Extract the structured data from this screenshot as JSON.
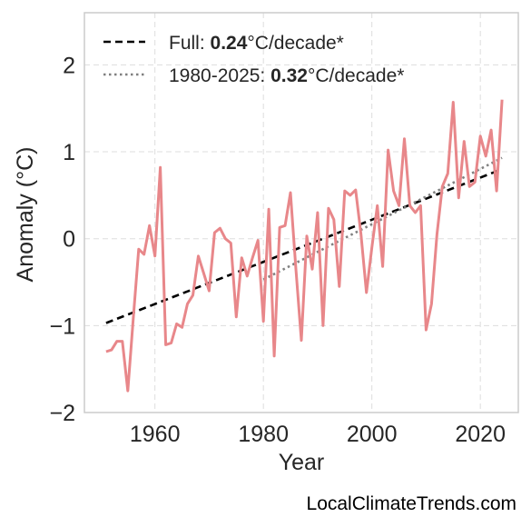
{
  "chart_data": {
    "type": "line",
    "xlabel": "Year",
    "ylabel": "Anomaly (°C)",
    "xlim": [
      1947,
      2027
    ],
    "ylim": [
      -2,
      2.6
    ],
    "x_ticks": [
      1960,
      1980,
      2000,
      2020
    ],
    "x_tick_labels": [
      "1960",
      "1980",
      "2000",
      "2020"
    ],
    "y_ticks": [
      -2,
      -1,
      0,
      1,
      2
    ],
    "y_tick_labels": [
      "−2",
      "−1",
      "0",
      "1",
      "2"
    ],
    "grid": true,
    "legend_position": "top-left",
    "colors": {
      "series": "#e8878a",
      "trend_full": "#000000",
      "trend_recent": "#808080",
      "grid": "#dddddd",
      "frame": "#cccccc"
    },
    "series": [
      {
        "x": [
          1951,
          1952,
          1953,
          1954,
          1955,
          1956,
          1957,
          1958,
          1959,
          1960,
          1961,
          1962,
          1963,
          1964,
          1965,
          1966,
          1967,
          1968,
          1969,
          1970,
          1971,
          1972,
          1973,
          1974,
          1975,
          1976,
          1977,
          1978,
          1979,
          1980,
          1981,
          1982,
          1983,
          1984,
          1985,
          1986,
          1987,
          1988,
          1989,
          1990,
          1991,
          1992,
          1993,
          1994,
          1995,
          1996,
          1997,
          1998,
          1999,
          2000,
          2001,
          2002,
          2003,
          2004,
          2005,
          2006,
          2007,
          2008,
          2009,
          2010,
          2011,
          2012,
          2013,
          2014,
          2015,
          2016,
          2017,
          2018,
          2019,
          2020,
          2021,
          2022,
          2023,
          2024
        ],
        "values": [
          -1.3,
          -1.28,
          -1.18,
          -1.18,
          -1.75,
          -0.92,
          -0.12,
          -0.18,
          0.15,
          -0.2,
          0.82,
          -1.22,
          -1.2,
          -0.98,
          -1.02,
          -0.75,
          -0.65,
          -0.2,
          -0.4,
          -0.6,
          0.07,
          0.12,
          0.0,
          -0.05,
          -0.9,
          -0.22,
          -0.43,
          -0.22,
          -0.02,
          -0.95,
          0.34,
          -1.35,
          0.13,
          0.15,
          0.53,
          -0.35,
          -1.17,
          0.03,
          -0.35,
          0.3,
          -1.0,
          0.35,
          0.22,
          -0.55,
          0.55,
          0.5,
          0.56,
          0.05,
          -0.62,
          -0.1,
          0.38,
          -0.32,
          1.02,
          0.55,
          0.38,
          1.15,
          0.38,
          0.3,
          0.38,
          -1.05,
          -0.75,
          0.05,
          0.6,
          0.75,
          1.57,
          0.47,
          1.12,
          0.6,
          0.65,
          1.18,
          0.95,
          1.25,
          0.55,
          1.6
        ]
      }
    ],
    "trend_lines": [
      {
        "label": "Full",
        "rate": "0.24",
        "unit": "°C/decade*",
        "x": [
          1951,
          2024
        ],
        "y": [
          -0.97,
          0.8
        ]
      },
      {
        "label": "1980-2025",
        "rate": "0.32",
        "unit": "°C/decade*",
        "x": [
          1980,
          2024
        ],
        "y": [
          -0.47,
          0.93
        ]
      }
    ]
  },
  "legend": {
    "full_prefix": "Full: ",
    "full_rate": "0.24",
    "full_suffix": "°C/decade*",
    "recent_prefix": "1980-2025: ",
    "recent_rate": "0.32",
    "recent_suffix": "°C/decade*"
  },
  "watermark": "LocalClimateTrends.com"
}
